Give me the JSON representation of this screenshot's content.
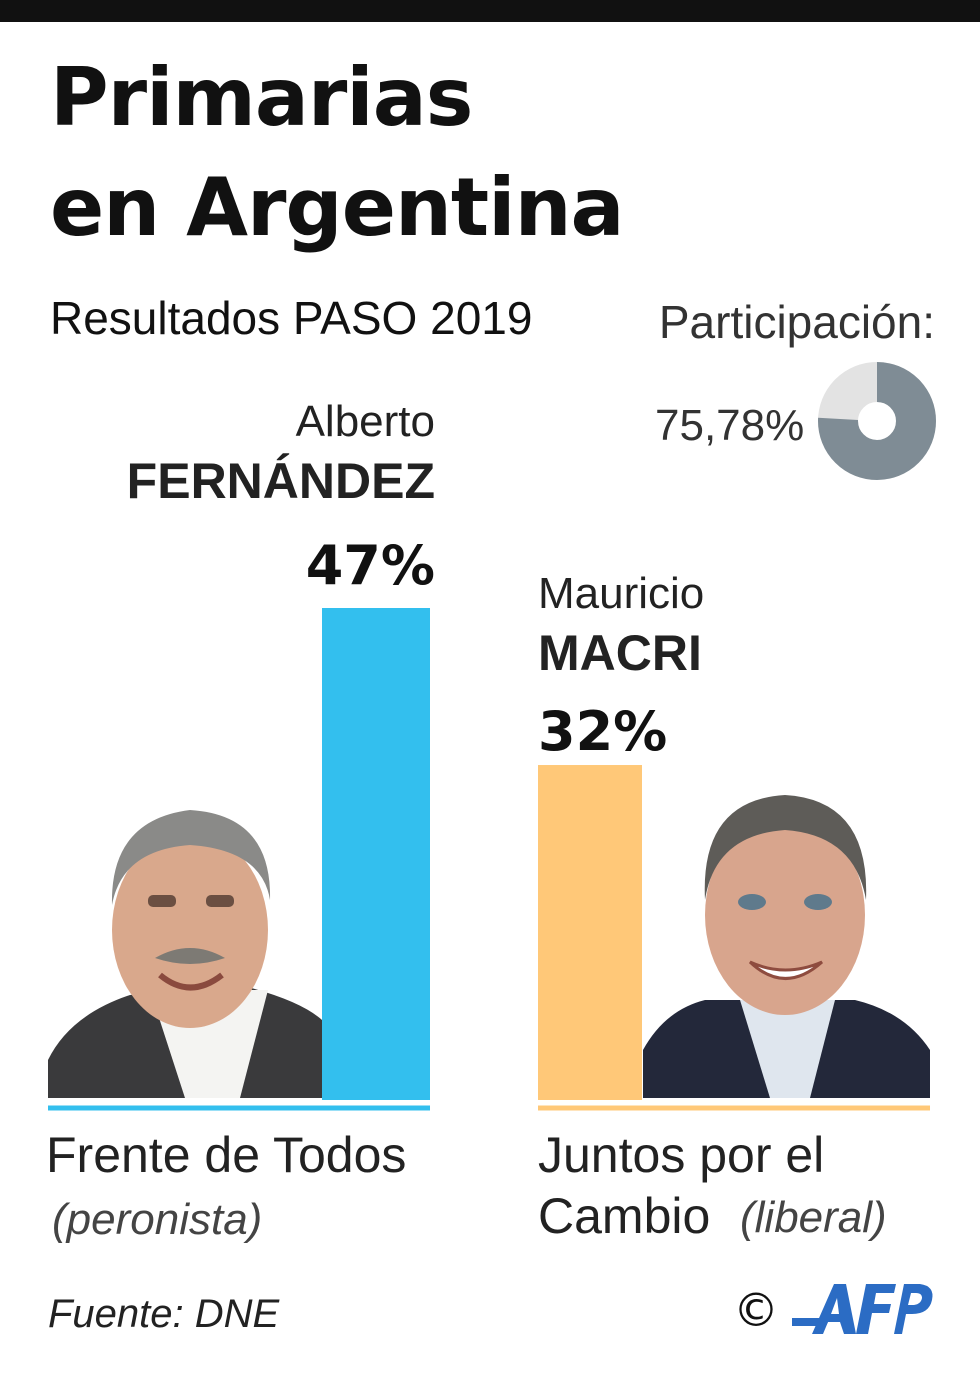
{
  "title": {
    "line1": "Primarias",
    "line2": "en Argentina"
  },
  "subtitle": "Resultados PASO 2019",
  "participation": {
    "label": "Participación:",
    "value_text": "75,78%",
    "value": 75.78
  },
  "chart_data": {
    "type": "bar",
    "title": "Primarias en Argentina",
    "subtitle": "Resultados PASO 2019",
    "categories": [
      "Frente de Todos",
      "Juntos por el Cambio"
    ],
    "values": [
      47,
      32
    ],
    "value_labels": [
      "47%",
      "32%"
    ],
    "ylim": [
      0,
      47
    ],
    "grid": false,
    "bars": [
      {
        "first_name": "Alberto",
        "last_name": "FERNÁNDEZ",
        "value": 47,
        "label": "47%",
        "party": "Frente de Todos",
        "ideology": "(peronista)",
        "color": "#33BFEE"
      },
      {
        "first_name": "Mauricio",
        "last_name": "MACRI",
        "value": 32,
        "label": "32%",
        "party_line1": "Juntos por el",
        "party_line2": "Cambio",
        "ideology": "(liberal)",
        "color": "#FFC878"
      }
    ]
  },
  "colors": {
    "accent_blue": "#33BFEE",
    "accent_orange": "#FFC878",
    "donut_fill": "#7F8C95",
    "donut_rest": "#E3E3E3"
  },
  "source": "Fuente: DNE",
  "credit": {
    "copyright": "©",
    "logo_text": "AFP"
  }
}
